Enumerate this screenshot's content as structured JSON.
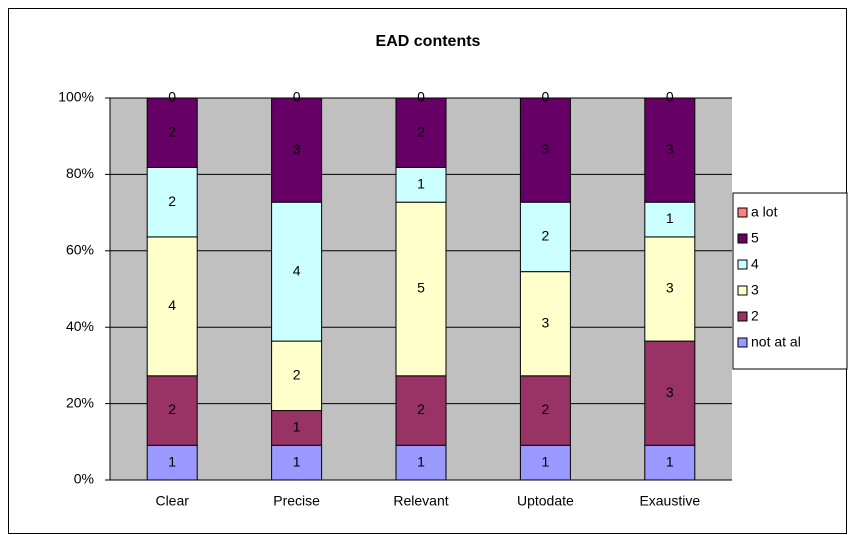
{
  "chart_data": {
    "type": "bar",
    "stacking": "percent",
    "title": "EAD contents",
    "categories": [
      "Clear",
      "Precise",
      "Relevant",
      "Uptodate",
      "Exaustive"
    ],
    "series": [
      {
        "name": "not at al",
        "color": "#9999ff",
        "values": [
          1,
          1,
          1,
          1,
          1
        ]
      },
      {
        "name": "2",
        "color": "#993366",
        "values": [
          2,
          1,
          2,
          2,
          3
        ]
      },
      {
        "name": "3",
        "color": "#ffffcc",
        "values": [
          4,
          2,
          5,
          3,
          3
        ]
      },
      {
        "name": "4",
        "color": "#ccffff",
        "values": [
          2,
          4,
          1,
          2,
          1
        ]
      },
      {
        "name": "5",
        "color": "#660066",
        "values": [
          2,
          3,
          2,
          3,
          3
        ]
      },
      {
        "name": "a lot",
        "color": "#ff8080",
        "values": [
          0,
          0,
          0,
          0,
          0
        ]
      }
    ],
    "ylim": [
      0,
      100
    ],
    "yticks": [
      {
        "value": 0,
        "label": "0%"
      },
      {
        "value": 20,
        "label": "20%"
      },
      {
        "value": 40,
        "label": "40%"
      },
      {
        "value": 60,
        "label": "60%"
      },
      {
        "value": 80,
        "label": "80%"
      },
      {
        "value": 100,
        "label": "100%"
      }
    ],
    "grid": true,
    "legend": "right",
    "plot_background": "#c0c0c0"
  }
}
